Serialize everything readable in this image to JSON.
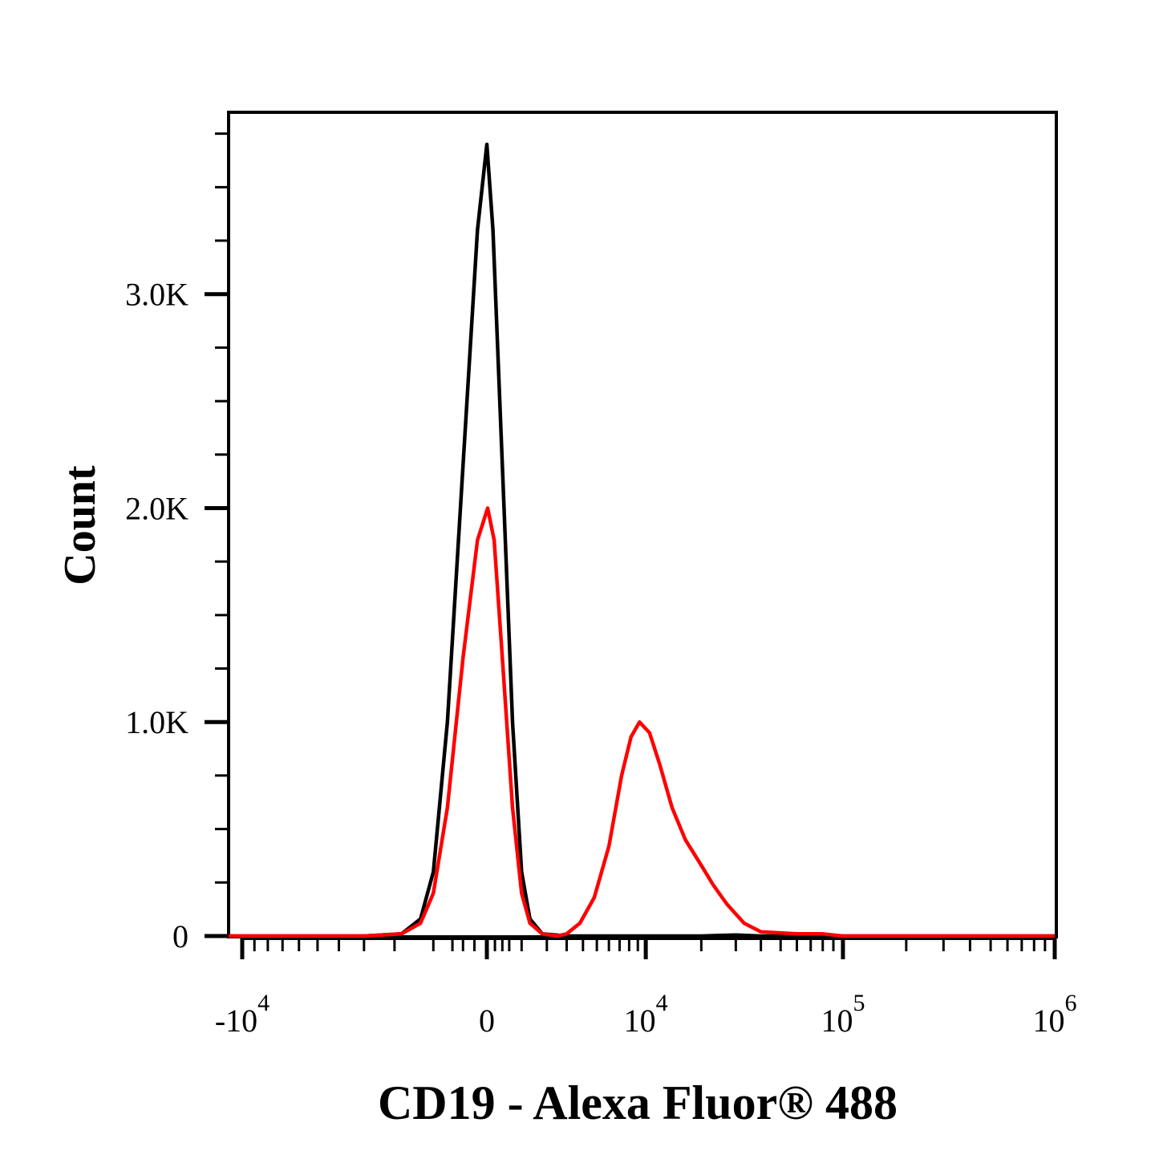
{
  "chart_data": {
    "type": "line",
    "title": "",
    "xlabel": "CD19 - Alexa Fluor® 488",
    "ylabel": "Count",
    "x_scale": "biexponential",
    "x_ticks": [
      {
        "value": -10000,
        "base": "-10",
        "exp": "4"
      },
      {
        "value": 0,
        "base": "0",
        "exp": ""
      },
      {
        "value": 10000,
        "base": "10",
        "exp": "4"
      },
      {
        "value": 100000,
        "base": "10",
        "exp": "5"
      },
      {
        "value": 1000000,
        "base": "10",
        "exp": "6"
      }
    ],
    "y_ticks": [
      {
        "value": 0,
        "label": "0"
      },
      {
        "value": 1000,
        "label": "1.0K"
      },
      {
        "value": 2000,
        "label": "2.0K"
      },
      {
        "value": 3000,
        "label": "3.0K"
      }
    ],
    "ylim": [
      0,
      3850
    ],
    "grid": false,
    "legend": "none",
    "series": [
      {
        "color": "#000000",
        "points": [
          [
            -20000,
            0
          ],
          [
            -3000,
            0
          ],
          [
            -1800,
            10
          ],
          [
            -1300,
            80
          ],
          [
            -1000,
            300
          ],
          [
            -700,
            1000
          ],
          [
            -400,
            2200
          ],
          [
            -150,
            3300
          ],
          [
            0,
            3700
          ],
          [
            150,
            3300
          ],
          [
            400,
            2200
          ],
          [
            700,
            1000
          ],
          [
            1000,
            300
          ],
          [
            1300,
            80
          ],
          [
            1800,
            10
          ],
          [
            3000,
            0
          ],
          [
            10000,
            0
          ],
          [
            20000,
            0
          ],
          [
            30000,
            5
          ],
          [
            40000,
            0
          ],
          [
            1000000,
            0
          ]
        ]
      },
      {
        "color": "#ff0000",
        "points": [
          [
            -20000,
            0
          ],
          [
            -3000,
            0
          ],
          [
            -1800,
            10
          ],
          [
            -1300,
            60
          ],
          [
            -1000,
            200
          ],
          [
            -700,
            600
          ],
          [
            -400,
            1300
          ],
          [
            -150,
            1850
          ],
          [
            20,
            2000
          ],
          [
            180,
            1850
          ],
          [
            400,
            1300
          ],
          [
            700,
            600
          ],
          [
            1000,
            200
          ],
          [
            1300,
            60
          ],
          [
            1800,
            10
          ],
          [
            2500,
            0
          ],
          [
            3000,
            10
          ],
          [
            3800,
            60
          ],
          [
            4800,
            180
          ],
          [
            6000,
            420
          ],
          [
            7200,
            750
          ],
          [
            8200,
            930
          ],
          [
            9200,
            1000
          ],
          [
            10500,
            950
          ],
          [
            12000,
            800
          ],
          [
            14000,
            600
          ],
          [
            16500,
            450
          ],
          [
            20000,
            330
          ],
          [
            23000,
            240
          ],
          [
            27000,
            150
          ],
          [
            33000,
            60
          ],
          [
            40000,
            20
          ],
          [
            60000,
            10
          ],
          [
            80000,
            10
          ],
          [
            100000,
            0
          ],
          [
            1000000,
            0
          ]
        ]
      }
    ]
  }
}
